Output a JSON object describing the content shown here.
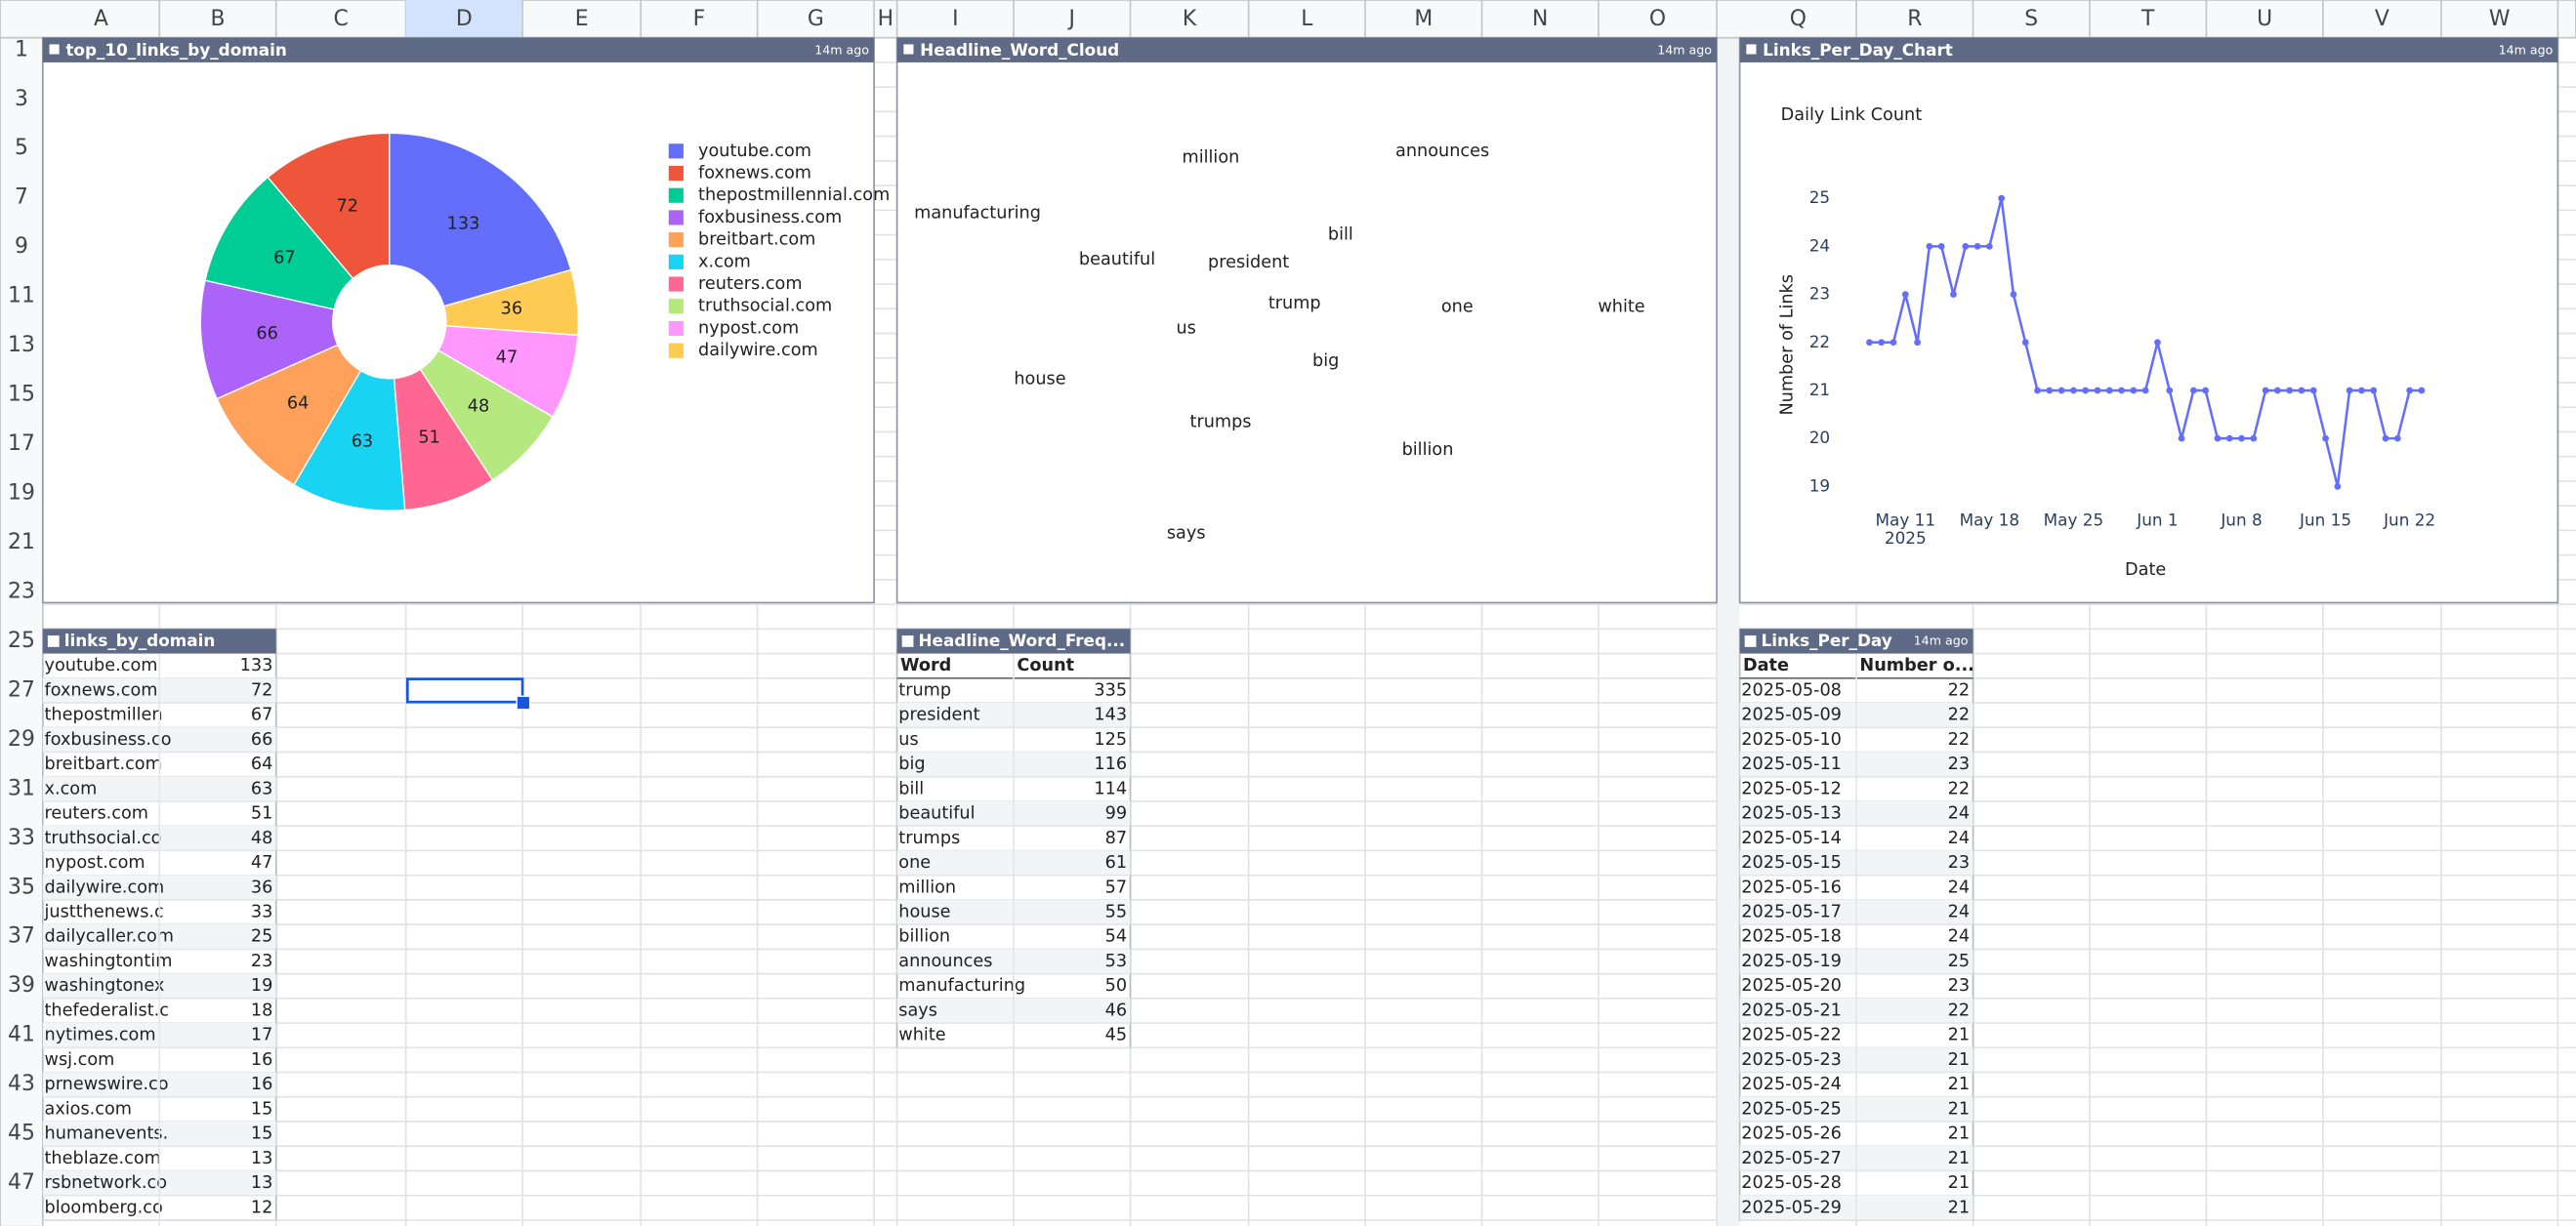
{
  "sheet": {
    "columns": [
      "A",
      "B",
      "C",
      "D",
      "E",
      "F",
      "G",
      "H",
      "I",
      "J",
      "K",
      "L",
      "M",
      "N",
      "O",
      "Q",
      "R",
      "S",
      "T",
      "U",
      "V",
      "W"
    ],
    "row_numbers": [
      1,
      3,
      5,
      7,
      9,
      11,
      13,
      15,
      17,
      19,
      21,
      23,
      25,
      27,
      29,
      31,
      33,
      35,
      37,
      39,
      41,
      43,
      45,
      47
    ]
  },
  "chart_data": [
    {
      "type": "pie",
      "title": "top_10_links_by_domain",
      "updated": "14m ago",
      "categories": [
        "youtube.com",
        "foxnews.com",
        "thepostmillennial.com",
        "foxbusiness.com",
        "breitbart.com",
        "x.com",
        "reuters.com",
        "truthsocial.com",
        "nypost.com",
        "dailywire.com"
      ],
      "values": [
        133,
        72,
        67,
        66,
        64,
        63,
        51,
        48,
        47,
        36
      ],
      "colors": [
        "#636efa",
        "#ef553b",
        "#00cc96",
        "#ab63fa",
        "#ffa15a",
        "#19d3f3",
        "#ff6692",
        "#b6e880",
        "#ff97ff",
        "#fecb52"
      ],
      "hole": 0.3,
      "legend": "right"
    },
    {
      "type": "line",
      "panel_title": "Links_Per_Day_Chart",
      "updated": "14m ago",
      "title": "Daily Link Count",
      "xlabel": "Date",
      "ylabel": "Number of Links",
      "x": [
        "2025-05-08",
        "2025-05-09",
        "2025-05-10",
        "2025-05-11",
        "2025-05-12",
        "2025-05-13",
        "2025-05-14",
        "2025-05-15",
        "2025-05-16",
        "2025-05-17",
        "2025-05-18",
        "2025-05-19",
        "2025-05-20",
        "2025-05-21",
        "2025-05-22",
        "2025-05-23",
        "2025-05-24",
        "2025-05-25",
        "2025-05-26",
        "2025-05-27",
        "2025-05-28",
        "2025-05-29",
        "2025-05-30",
        "2025-05-31",
        "2025-06-01",
        "2025-06-02",
        "2025-06-03",
        "2025-06-04",
        "2025-06-05",
        "2025-06-06",
        "2025-06-07",
        "2025-06-08",
        "2025-06-09",
        "2025-06-10",
        "2025-06-11",
        "2025-06-12",
        "2025-06-13",
        "2025-06-14",
        "2025-06-15",
        "2025-06-16",
        "2025-06-17",
        "2025-06-18",
        "2025-06-19",
        "2025-06-20",
        "2025-06-21",
        "2025-06-22",
        "2025-06-23"
      ],
      "values": [
        22,
        22,
        22,
        23,
        22,
        24,
        24,
        23,
        24,
        24,
        24,
        25,
        23,
        22,
        21,
        21,
        21,
        21,
        21,
        21,
        21,
        21,
        21,
        21,
        22,
        21,
        20,
        21,
        21,
        20,
        20,
        20,
        20,
        21,
        21,
        21,
        21,
        21,
        20,
        19,
        21,
        21,
        21,
        20,
        20,
        21,
        21
      ],
      "color": "#636efa",
      "markers": true,
      "xlim": [
        "2025-05-05",
        "2025-06-26"
      ],
      "xticks": [
        {
          "value": "2025-05-11",
          "label": "May 11"
        },
        {
          "value": "2025-05-18",
          "label": "May 18"
        },
        {
          "value": "2025-05-25",
          "label": "May 25"
        },
        {
          "value": "2025-06-01",
          "label": "Jun 1"
        },
        {
          "value": "2025-06-08",
          "label": "Jun 8"
        },
        {
          "value": "2025-06-15",
          "label": "Jun 15"
        },
        {
          "value": "2025-06-22",
          "label": "Jun 22"
        }
      ],
      "xtick_year": "2025",
      "ylim": [
        18.7,
        25.3
      ],
      "yticks": [
        19,
        20,
        21,
        22,
        23,
        24,
        25
      ],
      "grid": false
    }
  ],
  "word_cloud": {
    "title": "Headline_Word_Cloud",
    "updated": "14m ago"
  },
  "links_by_domain": {
    "title": "links_by_domain",
    "rows": [
      [
        "youtube.com",
        133
      ],
      [
        "foxnews.com",
        72
      ],
      [
        "thepostmillen",
        67
      ],
      [
        "foxbusiness.co",
        66
      ],
      [
        "breitbart.com",
        64
      ],
      [
        "x.com",
        63
      ],
      [
        "reuters.com",
        51
      ],
      [
        "truthsocial.co",
        48
      ],
      [
        "nypost.com",
        47
      ],
      [
        "dailywire.com",
        36
      ],
      [
        "justthenews.c",
        33
      ],
      [
        "dailycaller.com",
        25
      ],
      [
        "washingtontim",
        23
      ],
      [
        "washingtonex",
        19
      ],
      [
        "thefederalist.c",
        18
      ],
      [
        "nytimes.com",
        17
      ],
      [
        "wsj.com",
        16
      ],
      [
        "prnewswire.co",
        16
      ],
      [
        "axios.com",
        15
      ],
      [
        "humanevents.",
        15
      ],
      [
        "theblaze.com",
        13
      ],
      [
        "rsbnetwork.co",
        13
      ],
      [
        "bloomberg.co",
        12
      ]
    ]
  },
  "headline_word_freq": {
    "title": "Headline_Word_Freq...",
    "columns": [
      "Word",
      "Count"
    ],
    "rows": [
      [
        "trump",
        335
      ],
      [
        "president",
        143
      ],
      [
        "us",
        125
      ],
      [
        "big",
        116
      ],
      [
        "bill",
        114
      ],
      [
        "beautiful",
        99
      ],
      [
        "trumps",
        87
      ],
      [
        "one",
        61
      ],
      [
        "million",
        57
      ],
      [
        "house",
        55
      ],
      [
        "billion",
        54
      ],
      [
        "announces",
        53
      ],
      [
        "manufacturing",
        50
      ],
      [
        "says",
        46
      ],
      [
        "white",
        45
      ]
    ]
  },
  "links_per_day": {
    "title": "Links_Per_Day",
    "updated": "14m ago",
    "columns": [
      "Date",
      "Number o..."
    ]
  }
}
